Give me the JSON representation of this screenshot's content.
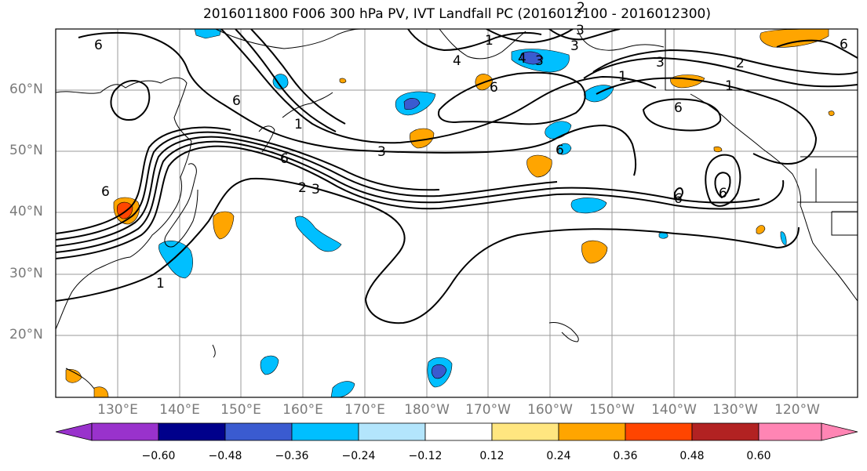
{
  "title": "2016011800 F006 300 hPa PV, IVT Landfall PC (2016012100 - 2016012300)",
  "lat_labels": [
    {
      "label": "60°N"
    },
    {
      "label": "50°N"
    },
    {
      "label": "40°N"
    },
    {
      "label": "30°N"
    },
    {
      "label": "20°N"
    }
  ],
  "lon_labels": [
    {
      "label": "130°E"
    },
    {
      "label": "140°E"
    },
    {
      "label": "150°E"
    },
    {
      "label": "160°E"
    },
    {
      "label": "170°E"
    },
    {
      "label": "180°W"
    },
    {
      "label": "170°W"
    },
    {
      "label": "160°W"
    },
    {
      "label": "150°W"
    },
    {
      "label": "140°W"
    },
    {
      "label": "130°W"
    },
    {
      "label": "120°W"
    }
  ],
  "colorbar": {
    "colors": [
      "#9932cc",
      "#00008b",
      "#3a5bd0",
      "#00bfff",
      "#b3e5fc",
      "#ffffff",
      "#ffe680",
      "#ffa500",
      "#ff4500",
      "#b22222",
      "#ff85b4"
    ],
    "tick_labels": [
      "−0.60",
      "−0.48",
      "−0.36",
      "−0.24",
      "−0.12",
      "0.12",
      "0.24",
      "0.36",
      "0.48",
      "0.60"
    ]
  },
  "contour_labels": [
    "6",
    "6",
    "6",
    "1",
    "6",
    "3",
    "2",
    "3",
    "3",
    "4",
    "1",
    "6",
    "3",
    "4",
    "1",
    "6",
    "6",
    "6",
    "1",
    "2",
    "3",
    "3",
    "6",
    "6",
    "1",
    "2"
  ]
}
